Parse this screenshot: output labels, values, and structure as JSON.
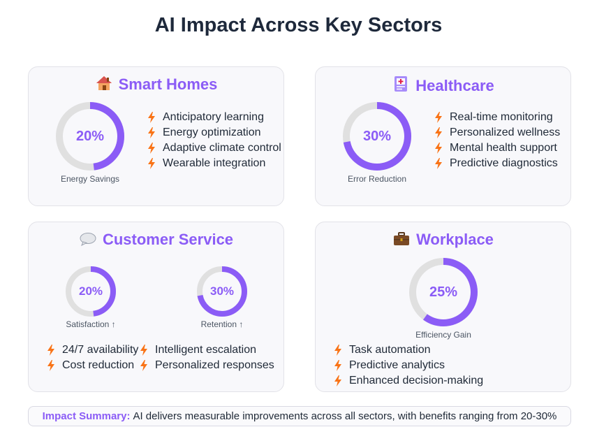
{
  "title": "AI Impact Across Key Sectors",
  "colors": {
    "accent": "#8b5cf6",
    "track": "#e0e0e0",
    "bolt": "#f97316"
  },
  "cards": {
    "smart_homes": {
      "icon": "house-icon",
      "title": "Smart Homes",
      "metric": {
        "value": 20,
        "label": "20%",
        "caption": "Energy Savings"
      },
      "features": [
        "Anticipatory learning",
        "Energy optimization",
        "Adaptive climate control",
        "Wearable integration"
      ]
    },
    "healthcare": {
      "icon": "medical-icon",
      "title": "Healthcare",
      "metric": {
        "value": 30,
        "label": "30%",
        "caption": "Error Reduction"
      },
      "features": [
        "Real-time monitoring",
        "Personalized wellness",
        "Mental health support",
        "Predictive diagnostics"
      ]
    },
    "customer_service": {
      "icon": "speech-bubble-icon",
      "title": "Customer Service",
      "metrics": [
        {
          "value": 20,
          "label": "20%",
          "caption": "Satisfaction ↑"
        },
        {
          "value": 30,
          "label": "30%",
          "caption": "Retention ↑"
        }
      ],
      "features_left": [
        "24/7 availability",
        "Cost reduction"
      ],
      "features_right": [
        "Intelligent escalation",
        "Personalized responses"
      ]
    },
    "workplace": {
      "icon": "briefcase-icon",
      "title": "Workplace",
      "metric": {
        "value": 25,
        "label": "25%",
        "caption": "Efficiency Gain"
      },
      "features": [
        "Task automation",
        "Predictive analytics",
        "Enhanced decision-making"
      ]
    }
  },
  "summary": {
    "label": "Impact Summary:",
    "text": "AI delivers measurable improvements across all sectors, with benefits ranging from 20-30%"
  }
}
